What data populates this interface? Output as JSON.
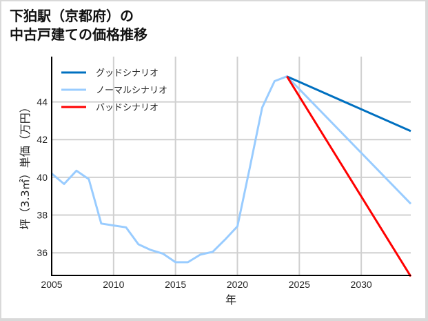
{
  "title_lines": [
    "下狛駅（京都府）の",
    "中古戸建ての価格推移"
  ],
  "chart_data": {
    "type": "line",
    "title": "下狛駅（京都府）の中古戸建ての価格推移",
    "xlabel": "年",
    "ylabel": "坪（3.3㎡）単価（万円）",
    "xlim": [
      2005,
      2034
    ],
    "ylim": [
      34.8,
      46.4
    ],
    "xticks": [
      2005,
      2010,
      2015,
      2020,
      2025,
      2030
    ],
    "yticks": [
      36,
      38,
      40,
      42,
      44
    ],
    "grid": true,
    "legend_position": "upper left",
    "series": [
      {
        "name": "グッドシナリオ",
        "color": "#0070c0",
        "x": [
          2024,
          2034
        ],
        "values": [
          45.35,
          42.45
        ]
      },
      {
        "name": "ノーマルシナリオ",
        "color": "#99ccff",
        "x": [
          2005,
          2006,
          2007,
          2008,
          2009,
          2010,
          2011,
          2012,
          2013,
          2014,
          2015,
          2016,
          2017,
          2018,
          2019,
          2020,
          2021,
          2022,
          2023,
          2024,
          2034
        ],
        "values": [
          40.2,
          39.65,
          40.35,
          39.9,
          37.55,
          37.45,
          37.35,
          36.45,
          36.15,
          35.95,
          35.5,
          35.5,
          35.9,
          36.05,
          36.7,
          37.4,
          40.5,
          43.7,
          45.1,
          45.35,
          38.6
        ]
      },
      {
        "name": "バッドシナリオ",
        "color": "#ff0000",
        "x": [
          2024,
          2034
        ],
        "values": [
          45.35,
          34.75
        ]
      }
    ]
  }
}
